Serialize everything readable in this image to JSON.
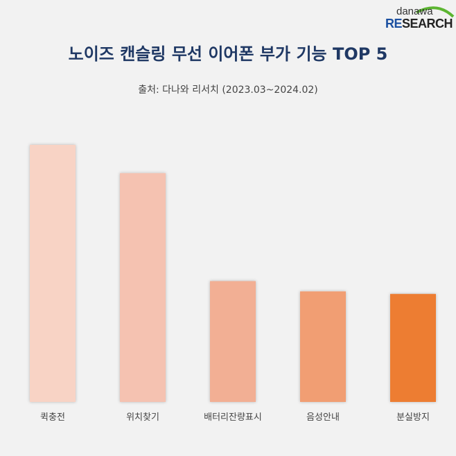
{
  "logo": {
    "line1": "danawa",
    "line2_accent": "RE",
    "line2_rest": "SEARCH"
  },
  "chart_data": {
    "type": "bar",
    "title": "노이즈 캔슬링 무선 이어폰 부가 기능 TOP 5",
    "subtitle": "출처: 다나와 리서치 (2023.03~2024.02)",
    "categories": [
      "퀵충전",
      "위치찾기",
      "배터리잔량표시",
      "음성안내",
      "분실방지"
    ],
    "values": [
      100,
      89,
      47,
      43,
      42
    ],
    "value_note": "relative estimate (no labels shown)",
    "ylim": [
      0,
      100
    ],
    "colors": [
      "#f8d3c5",
      "#f5c2b1",
      "#f2af94",
      "#f19e73",
      "#ed7d31"
    ],
    "grid": false,
    "xlabel": "",
    "ylabel": ""
  }
}
